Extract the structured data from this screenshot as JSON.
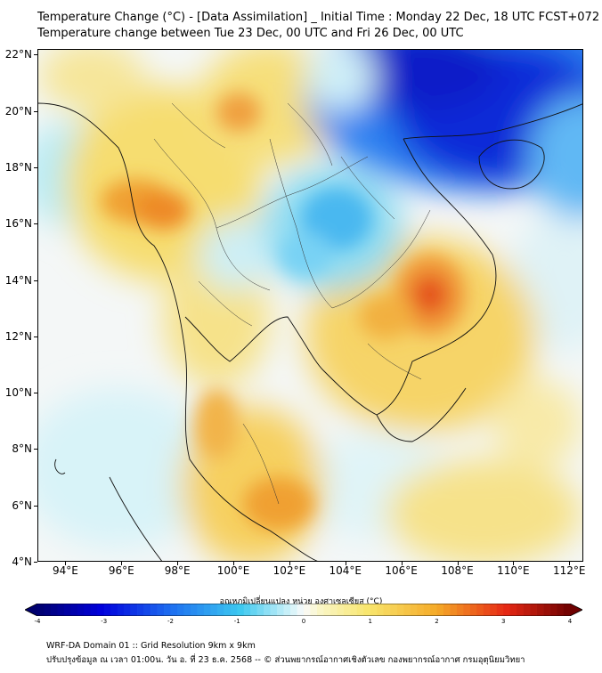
{
  "header": {
    "title": "Temperature Change (°C) - [Data Assimilation] _ Initial Time : Monday 22 Dec, 18 UTC FCST+072",
    "subtitle": "Temperature change between Tue 23 Dec, 00 UTC and Fri 26 Dec, 00 UTC"
  },
  "map": {
    "lat_labels": [
      "22°N",
      "20°N",
      "18°N",
      "16°N",
      "14°N",
      "12°N",
      "10°N",
      "8°N",
      "6°N",
      "4°N"
    ],
    "lon_labels": [
      "94°E",
      "96°E",
      "98°E",
      "100°E",
      "102°E",
      "104°E",
      "106°E",
      "108°E",
      "110°E",
      "112°E"
    ],
    "lat_range": [
      4,
      22.2
    ],
    "lon_range": [
      93,
      112.5
    ],
    "colors": {
      "cold_max": "#0000b0",
      "cold": "#1e90ff",
      "cool": "#87e0f5",
      "neutral": "#f5f8f8",
      "warm": "#f8e27a",
      "hot": "#f09a30",
      "very_hot": "#e04a18"
    }
  },
  "colorbar": {
    "title": "อุณหภูมิเปลี่ยนแปลง หน่วย องศาเซลเซียส (°C)",
    "ticks": [
      "-4",
      "-3",
      "-2",
      "-1",
      "0",
      "1",
      "2",
      "3",
      "4"
    ],
    "range": [
      -4,
      4
    ]
  },
  "footer": {
    "line1": "WRF-DA Domain 01 :: Grid Resolution 9km x 9km",
    "line2": "ปรับปรุงข้อมูล ณ เวลา 01:00น. วัน อ. ที่ 23 ธ.ค. 2568 -- © ส่วนพยากรณ์อากาศเชิงตัวเลข กองพยากรณ์อากาศ กรมอุตุนิยมวิทยา"
  }
}
